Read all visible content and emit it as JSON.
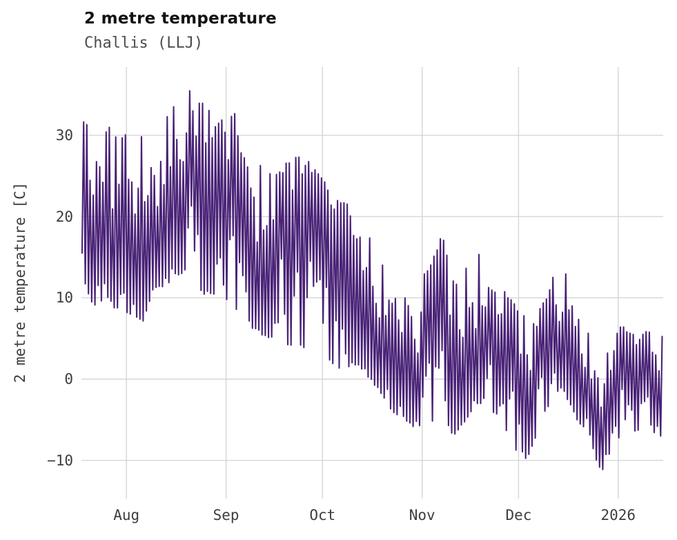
{
  "header": {
    "title": "2 metre temperature",
    "subtitle": "Challis (LLJ)"
  },
  "chart_data": {
    "type": "line",
    "title": "2 metre temperature",
    "subtitle": "Challis (LLJ)",
    "xlabel": "",
    "ylabel": "2 metre temperature [C]",
    "legend": "none",
    "grid": "on",
    "background": "#ffffff",
    "line_color": "#4a2377",
    "grid_color": "#d6d6d6",
    "ylim": [
      -14.7,
      38.4
    ],
    "y_ticks": [
      -10,
      0,
      10,
      20,
      30
    ],
    "x_domain_days": [
      0,
      181
    ],
    "x_ticks": [
      {
        "label": "Aug",
        "day": 14
      },
      {
        "label": "Sep",
        "day": 45
      },
      {
        "label": "Oct",
        "day": 75
      },
      {
        "label": "Nov",
        "day": 106
      },
      {
        "label": "Dec",
        "day": 136
      },
      {
        "label": "2026",
        "day": 167
      }
    ],
    "seed": 20260107,
    "envelope_day_lo_hi": [
      [
        0,
        13,
        32
      ],
      [
        4,
        9,
        31
      ],
      [
        8,
        10,
        31.5
      ],
      [
        12,
        8,
        30
      ],
      [
        16,
        8,
        31
      ],
      [
        20,
        7,
        29.5
      ],
      [
        24,
        11,
        31
      ],
      [
        28,
        12,
        33.5
      ],
      [
        31,
        13,
        34
      ],
      [
        33,
        13,
        35.8
      ],
      [
        36,
        11,
        34.5
      ],
      [
        40,
        10,
        33
      ],
      [
        44,
        9,
        32
      ],
      [
        47,
        9,
        33
      ],
      [
        50,
        8,
        31
      ],
      [
        54,
        6,
        27.5
      ],
      [
        58,
        5,
        25.5
      ],
      [
        62,
        4,
        26
      ],
      [
        66,
        4,
        27.5
      ],
      [
        70,
        3,
        27
      ],
      [
        74,
        4,
        25
      ],
      [
        78,
        2,
        23
      ],
      [
        82,
        0,
        21.5
      ],
      [
        86,
        2,
        24.5
      ],
      [
        90,
        0,
        17
      ],
      [
        94,
        -2,
        14
      ],
      [
        97,
        -4,
        16.8
      ],
      [
        101,
        -5,
        13
      ],
      [
        104,
        -6,
        12
      ],
      [
        108,
        -6,
        13.5
      ],
      [
        112,
        -4,
        17.8
      ],
      [
        116,
        -7,
        12
      ],
      [
        120,
        -5,
        14
      ],
      [
        123,
        -3,
        15.5
      ],
      [
        127,
        -3,
        14.5
      ],
      [
        131,
        -6,
        11
      ],
      [
        134,
        -7,
        9.5
      ],
      [
        137,
        -10.5,
        8
      ],
      [
        140,
        -9,
        7
      ],
      [
        143,
        -6,
        9
      ],
      [
        147,
        -2,
        13
      ],
      [
        150,
        -1,
        15.2
      ],
      [
        153,
        -4,
        12.5
      ],
      [
        156,
        -6,
        9
      ],
      [
        159,
        -8,
        7
      ],
      [
        162,
        -11.9,
        3
      ],
      [
        165,
        -9,
        5
      ],
      [
        167,
        -7.5,
        6.5
      ],
      [
        170,
        -6,
        6.3
      ],
      [
        173,
        -7,
        5
      ],
      [
        176,
        -5,
        6
      ],
      [
        179,
        -7.5,
        6.4
      ],
      [
        181,
        -7.5,
        5
      ]
    ]
  }
}
